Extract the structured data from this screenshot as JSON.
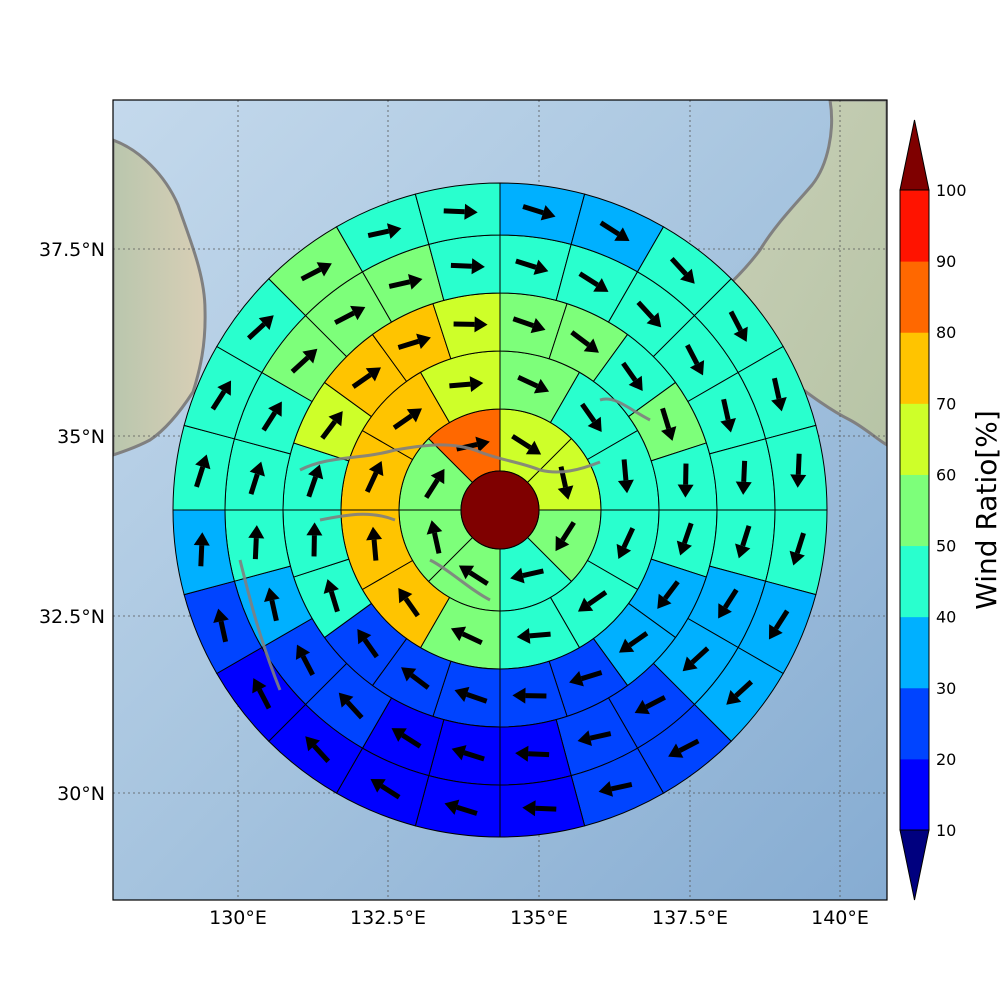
{
  "map": {
    "lon_ticks": [
      "130°E",
      "132.5°E",
      "135°E",
      "137.5°E",
      "140°E"
    ],
    "lat_ticks": [
      "37.5°N",
      "35°N",
      "32.5°N",
      "30°N"
    ]
  },
  "colorbar": {
    "title": "Wind Ratio[%]",
    "levels": [
      "10",
      "20",
      "30",
      "40",
      "50",
      "60",
      "70",
      "80",
      "90",
      "100"
    ],
    "colors": [
      "#0000ff",
      "#0044ff",
      "#00b0ff",
      "#29ffce",
      "#7dff7a",
      "#ceff29",
      "#ffc400",
      "#ff6800",
      "#ff1300",
      "#7f0000"
    ],
    "under_color": "#00007f",
    "over_color": "#7f0000"
  },
  "wind_rose": {
    "center_value": 100,
    "center_color": "#7f0000",
    "rings": [
      {
        "ring": 1,
        "values": [
          65,
          65,
          55,
          45,
          55,
          55,
          55,
          85
        ]
      },
      {
        "ring": 2,
        "values": [
          55,
          45,
          45,
          45,
          45,
          45,
          55,
          75,
          75,
          75,
          75,
          65
        ]
      },
      {
        "ring": 3,
        "values": [
          55,
          55,
          45,
          55,
          45,
          45,
          35,
          35,
          25,
          25,
          25,
          25,
          25,
          45,
          45,
          45,
          65,
          75,
          75,
          65
        ]
      },
      {
        "ring": 4,
        "values": [
          45,
          45,
          45,
          45,
          45,
          45,
          45,
          35,
          35,
          25,
          25,
          15,
          15,
          15,
          25,
          25,
          35,
          45,
          45,
          45,
          55,
          55,
          55,
          45
        ]
      },
      {
        "ring": 5,
        "values": [
          35,
          35,
          45,
          45,
          45,
          45,
          45,
          35,
          35,
          25,
          25,
          15,
          15,
          15,
          15,
          15,
          25,
          35,
          45,
          45,
          45,
          55,
          45,
          45
        ]
      }
    ]
  }
}
